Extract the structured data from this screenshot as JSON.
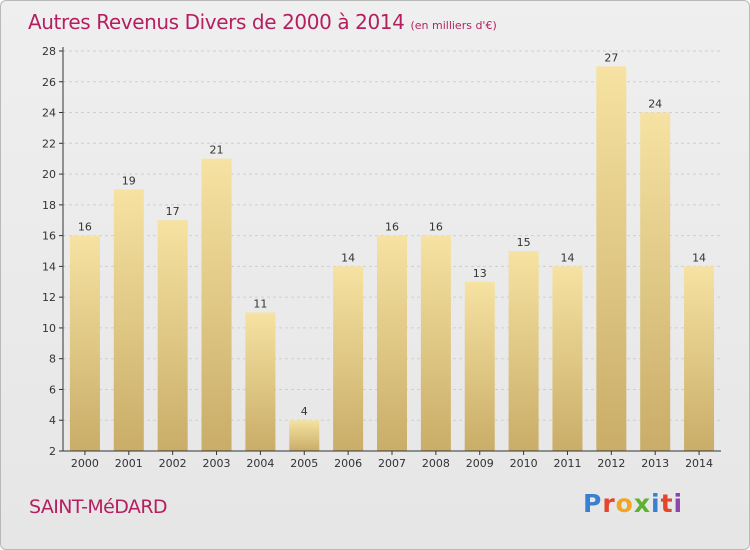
{
  "header": {
    "title": "Autres Revenus Divers de 2000 à 2014",
    "subtitle": "(en milliers d'€)"
  },
  "footer": {
    "city": "SAINT-MéDARD",
    "brand": "Proxiti",
    "brand_colors": [
      "#3a7fd0",
      "#e3462c",
      "#f1a522",
      "#5fb132",
      "#3a7fd0",
      "#e3462c",
      "#8e44ad"
    ]
  },
  "colors": {
    "title": "#b51f62",
    "bar_light": "#f6e2a2",
    "bar_dark": "#c9ad68",
    "grid": "#cfcfcf",
    "axis": "#333333"
  },
  "chart_data": {
    "type": "bar",
    "title": "Autres Revenus Divers de 2000 à 2014",
    "subtitle": "(en milliers d'€)",
    "categories": [
      "2000",
      "2001",
      "2002",
      "2003",
      "2004",
      "2005",
      "2006",
      "2007",
      "2008",
      "2009",
      "2010",
      "2011",
      "2012",
      "2013",
      "2014"
    ],
    "values": [
      16,
      19,
      17,
      21,
      11,
      4,
      14,
      16,
      16,
      13,
      15,
      14,
      27,
      24,
      14
    ],
    "ylim": [
      2,
      28
    ],
    "yticks": [
      2,
      4,
      6,
      8,
      10,
      12,
      14,
      16,
      18,
      20,
      22,
      24,
      26,
      28
    ],
    "grid": true,
    "data_labels": true
  }
}
